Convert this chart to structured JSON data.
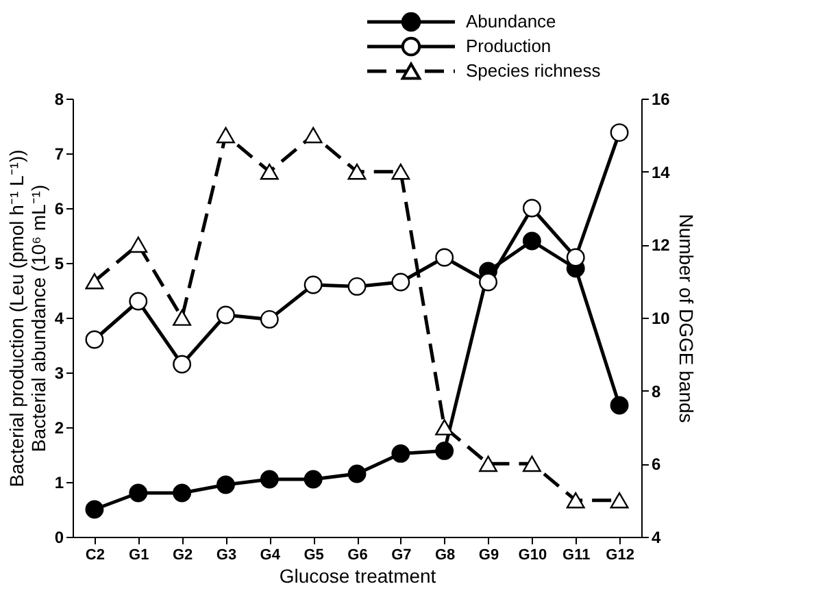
{
  "chart_data": {
    "type": "line",
    "xlabel": "Glucose treatment",
    "ylabel": "Bacterial production (Leu (pmol h⁻¹ L⁻¹))\nBacterial abundance (10⁶ mL⁻¹)",
    "y2label": "Number of DGGE bands",
    "categories": [
      "C2",
      "G1",
      "G2",
      "G3",
      "G4",
      "G5",
      "G6",
      "G7",
      "G8",
      "G9",
      "G10",
      "G11",
      "G12"
    ],
    "series": [
      {
        "name": "Abundance",
        "color": "#000000",
        "marker": "circle",
        "line_style": "solid",
        "values": [
          0.5,
          0.8,
          0.8,
          0.95,
          1.05,
          1.05,
          1.15,
          1.52,
          1.57,
          4.85,
          5.4,
          4.9,
          2.4
        ]
      },
      {
        "name": "Production",
        "color": "#000000",
        "marker": "circle",
        "line_style": "solid",
        "values": [
          3.6,
          4.3,
          3.15,
          4.05,
          3.97,
          4.6,
          4.57,
          4.65,
          5.1,
          4.65,
          6.0,
          5.1,
          7.38
        ]
      },
      {
        "name": "Species richness",
        "color": "#000000",
        "marker": "triangle",
        "line_style": "dashed",
        "axis": "y2",
        "values": [
          11,
          12,
          10,
          15,
          14,
          15,
          14,
          14,
          7,
          6,
          6,
          5,
          5
        ]
      }
    ],
    "ylim": [
      0,
      8
    ],
    "yticks": [
      0,
      1,
      2,
      3,
      4,
      5,
      6,
      7,
      8
    ],
    "y2lim": [
      4,
      16
    ],
    "y2ticks": [
      4,
      6,
      8,
      10,
      12,
      14,
      16
    ],
    "grid": false,
    "legend": "top right"
  }
}
